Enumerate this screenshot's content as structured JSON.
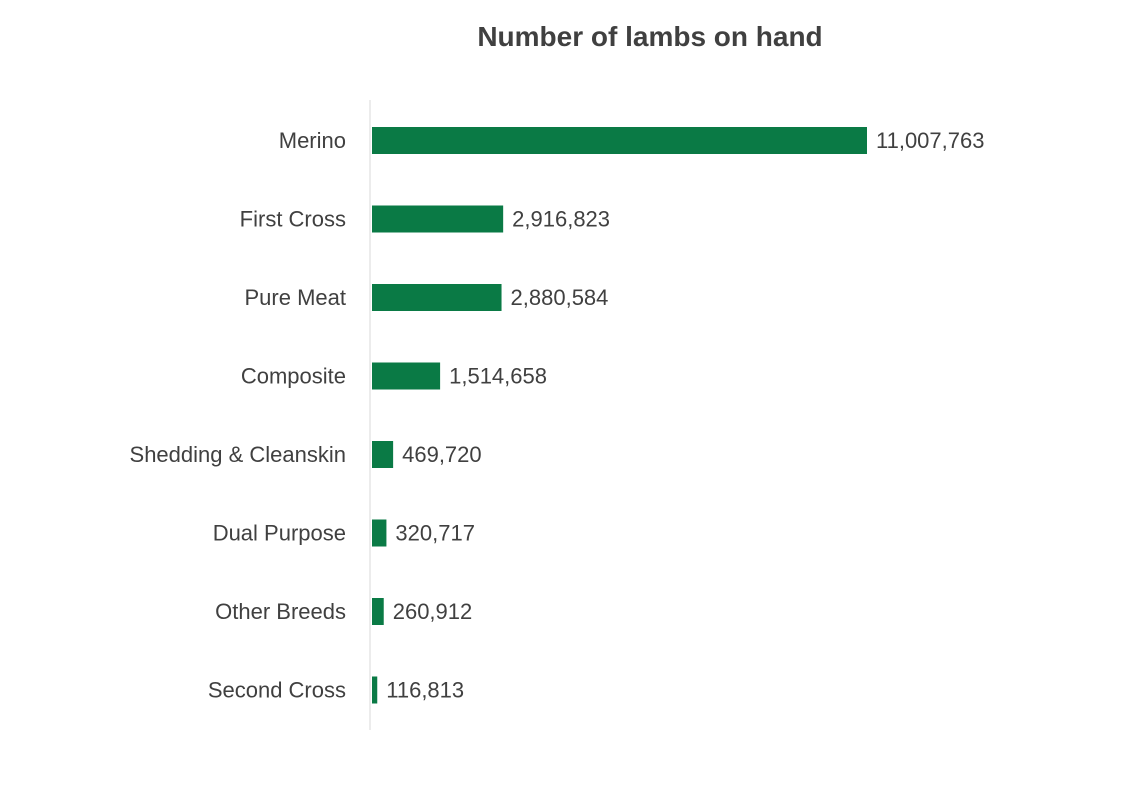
{
  "chart_data": {
    "type": "bar",
    "orientation": "horizontal",
    "title": "Number of lambs on hand",
    "categories": [
      "Merino",
      "First Cross",
      "Pure Meat",
      "Composite",
      "Shedding & Cleanskin",
      "Dual Purpose",
      "Other Breeds",
      "Second Cross"
    ],
    "values": [
      11007763,
      2916823,
      2880584,
      1514658,
      469720,
      320717,
      260912,
      116813
    ],
    "value_labels": [
      "11,007,763",
      "2,916,823",
      "2,880,584",
      "1,514,658",
      "469,720",
      "320,717",
      "260,912",
      "116,813"
    ],
    "xlabel": "",
    "ylabel": "",
    "xlim": [
      0,
      11007763
    ],
    "grid": false,
    "legend": "none",
    "colors": {
      "bar": "#0a7a45",
      "text": "#404040",
      "title": "#404040",
      "axis": "#e6e6e6"
    }
  }
}
